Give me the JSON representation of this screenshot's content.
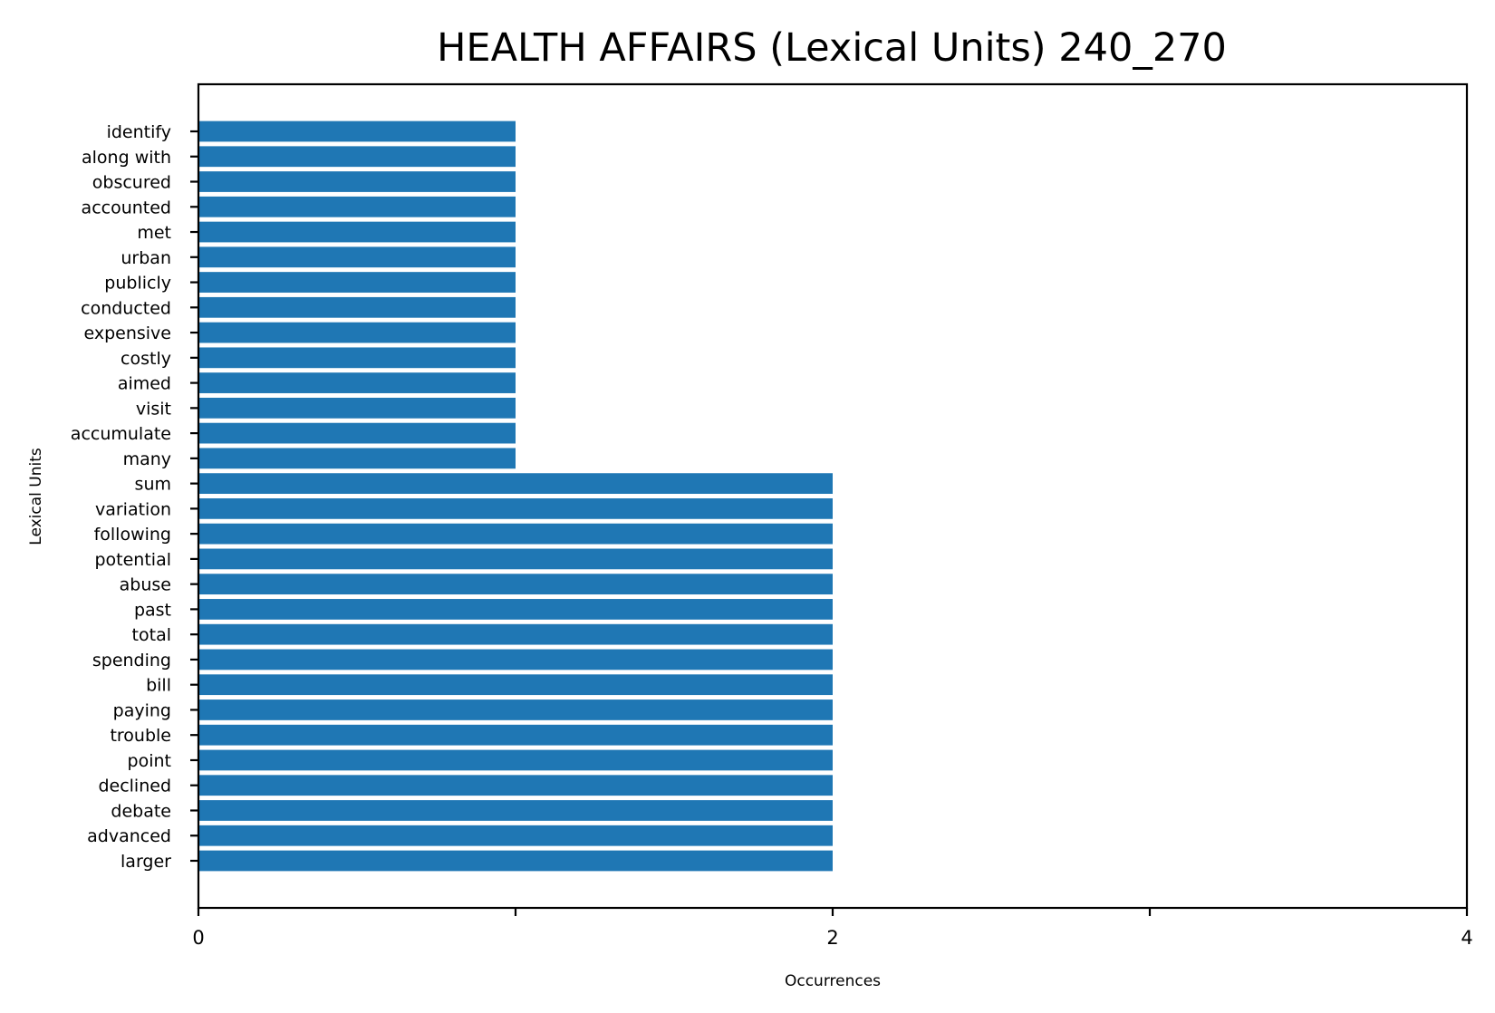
{
  "chart_data": {
    "type": "bar",
    "orientation": "horizontal",
    "title": "HEALTH AFFAIRS (Lexical Units) 240_270",
    "xlabel": "Occurrences",
    "ylabel": "Lexical Units",
    "xlim": [
      0,
      4
    ],
    "x_ticks": [
      0,
      1,
      2,
      3,
      4
    ],
    "x_tick_labels": [
      "0",
      "",
      "2",
      "",
      "4"
    ],
    "grid": false,
    "bar_color": "#1f77b4",
    "categories": [
      "identify",
      "along with",
      "obscured",
      "accounted",
      "met",
      "urban",
      "publicly",
      "conducted",
      "expensive",
      "costly",
      "aimed",
      "visit",
      "accumulate",
      "many",
      "sum",
      "variation",
      "following",
      "potential",
      "abuse",
      "past",
      "total",
      "spending",
      "bill",
      "paying",
      "trouble",
      "point",
      "declined",
      "debate",
      "advanced",
      "larger"
    ],
    "values": [
      1,
      1,
      1,
      1,
      1,
      1,
      1,
      1,
      1,
      1,
      1,
      1,
      1,
      1,
      2,
      2,
      2,
      2,
      2,
      2,
      2,
      2,
      2,
      2,
      2,
      2,
      2,
      2,
      2,
      2
    ]
  }
}
